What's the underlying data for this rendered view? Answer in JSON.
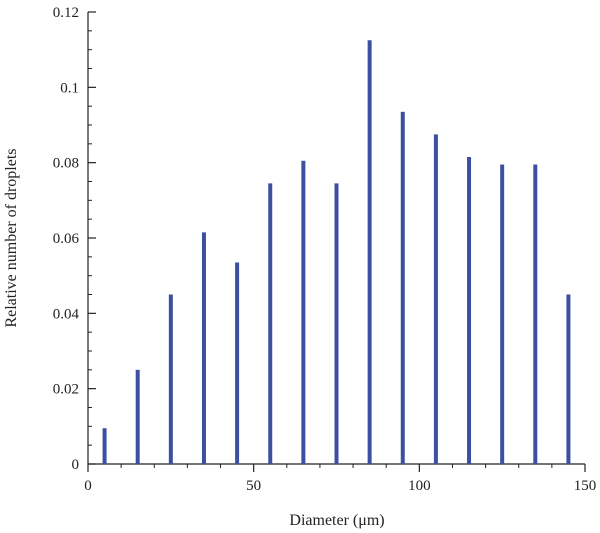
{
  "chart_data": {
    "type": "bar",
    "x": [
      5,
      15,
      25,
      35,
      45,
      55,
      65,
      75,
      85,
      95,
      105,
      115,
      125,
      135,
      145
    ],
    "values": [
      0.0095,
      0.025,
      0.045,
      0.0615,
      0.0535,
      0.0745,
      0.0805,
      0.0745,
      0.1125,
      0.0935,
      0.0875,
      0.0815,
      0.0795,
      0.0795,
      0.045
    ],
    "title": "",
    "xlabel": "Diameter (μm)",
    "ylabel": "Relative number of droplets",
    "xlim": [
      0,
      150
    ],
    "ylim": [
      0,
      0.12
    ],
    "xticks": [
      0,
      50,
      100,
      150
    ],
    "yticks": [
      0,
      0.02,
      0.04,
      0.06,
      0.08,
      0.1,
      0.12
    ],
    "xtick_labels": [
      "0",
      "50",
      "100",
      "150"
    ],
    "ytick_labels": [
      "0",
      "0.02",
      "0.04",
      "0.06",
      "0.08",
      "0.1",
      "0.12"
    ],
    "bar_color": "#3d4fa0",
    "grid": false,
    "legend": "none"
  }
}
